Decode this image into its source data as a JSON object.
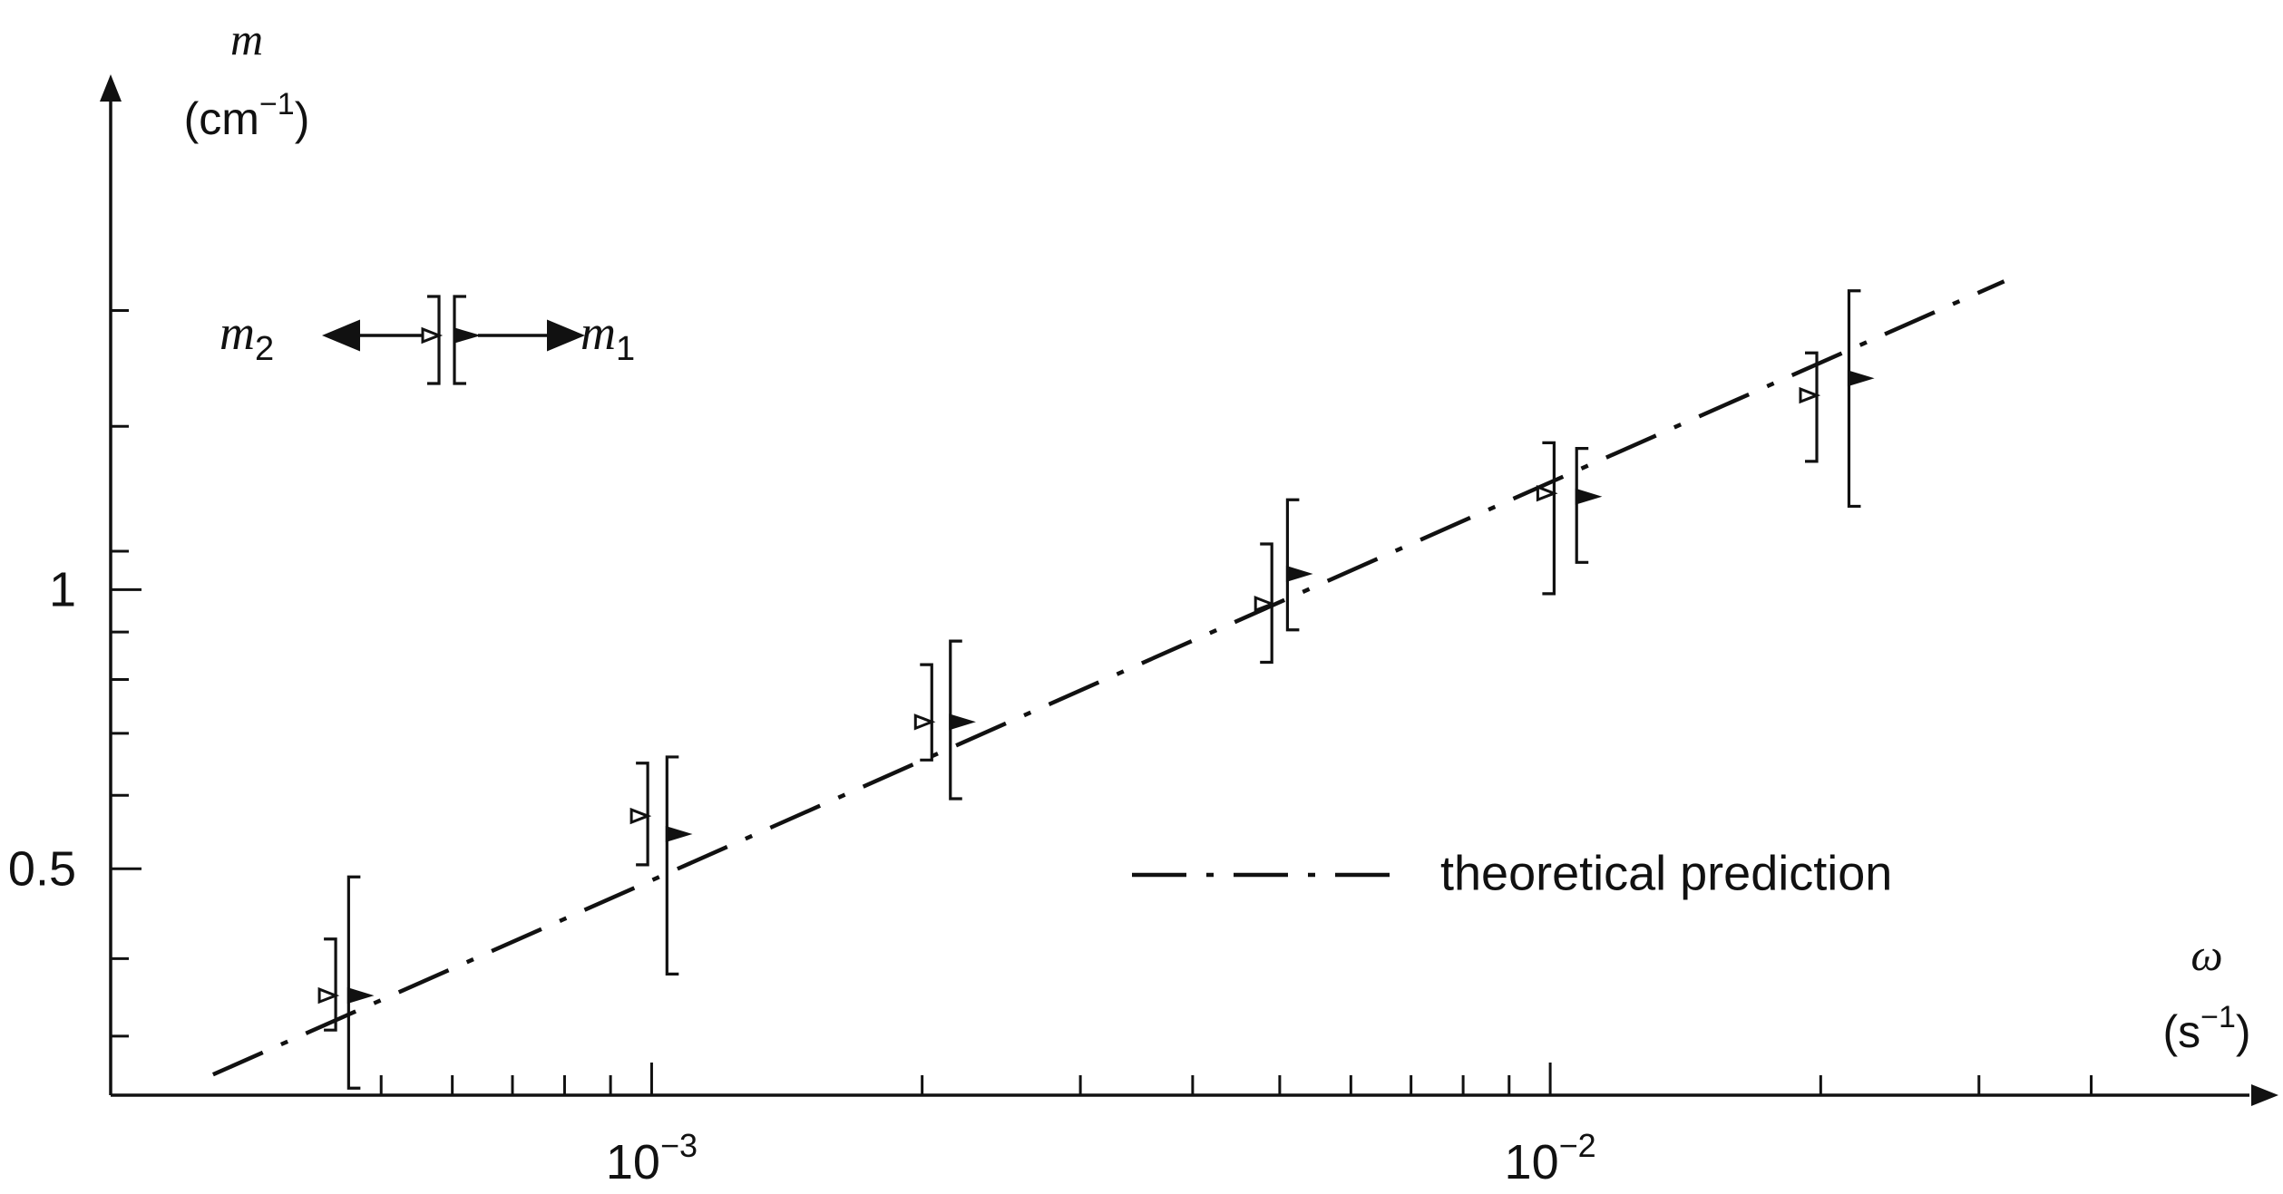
{
  "chart_data": {
    "type": "scatter",
    "x_scale": "log",
    "y_scale": "log",
    "xlim": [
      0.00025,
      0.06
    ],
    "ylim": [
      0.285,
      3.3
    ],
    "axes": {
      "y": {
        "symbol": "m",
        "unit_open": "(cm",
        "unit_exp": "−1",
        "unit_close": ")"
      },
      "x": {
        "symbol": "ω",
        "unit_open": "(s",
        "unit_exp": "−1",
        "unit_close": ")"
      }
    },
    "y_tick_labels": [
      {
        "value": 1,
        "text": "1"
      },
      {
        "value": 0.5,
        "text": "0.5"
      }
    ],
    "x_tick_labels": [
      {
        "value": 0.001,
        "base": "10",
        "exp": "−3"
      },
      {
        "value": 0.01,
        "base": "10",
        "exp": "−2"
      }
    ],
    "x_minor_ticks": [
      0.0005,
      0.0006,
      0.0007,
      0.0008,
      0.0009,
      0.002,
      0.003,
      0.004,
      0.005,
      0.006,
      0.007,
      0.008,
      0.009,
      0.02,
      0.03,
      0.04
    ],
    "y_minor_ticks": [
      0.33,
      0.4,
      0.6,
      0.7,
      0.8,
      0.9,
      1.1,
      1.5,
      2.0
    ],
    "theory_line": {
      "x": [
        0.000325,
        0.032
      ],
      "y": [
        0.3,
        2.15
      ]
    },
    "legend": {
      "label": "theoretical prediction"
    },
    "key": {
      "m1": {
        "symbol": "m",
        "sub": "1"
      },
      "m2": {
        "symbol": "m",
        "sub": "2"
      }
    },
    "series": [
      {
        "key": "m1",
        "marker": "filled-triangle-right",
        "points": [
          {
            "x": 0.00046,
            "y": 0.365,
            "low": 0.29,
            "high": 0.49
          },
          {
            "x": 0.00104,
            "y": 0.545,
            "low": 0.385,
            "high": 0.66
          },
          {
            "x": 0.00215,
            "y": 0.72,
            "low": 0.595,
            "high": 0.88
          },
          {
            "x": 0.0051,
            "y": 1.04,
            "low": 0.905,
            "high": 1.25
          },
          {
            "x": 0.0107,
            "y": 1.26,
            "low": 1.07,
            "high": 1.42
          },
          {
            "x": 0.0215,
            "y": 1.69,
            "low": 1.23,
            "high": 2.1
          }
        ]
      },
      {
        "key": "m2",
        "marker": "open-triangle-left",
        "points": [
          {
            "x": 0.000445,
            "y": 0.365,
            "low": 0.335,
            "high": 0.42
          },
          {
            "x": 0.00099,
            "y": 0.57,
            "low": 0.505,
            "high": 0.65
          },
          {
            "x": 0.00205,
            "y": 0.72,
            "low": 0.655,
            "high": 0.83
          },
          {
            "x": 0.0049,
            "y": 0.965,
            "low": 0.835,
            "high": 1.12
          },
          {
            "x": 0.0101,
            "y": 1.27,
            "low": 0.99,
            "high": 1.44
          },
          {
            "x": 0.0198,
            "y": 1.62,
            "low": 1.375,
            "high": 1.8
          }
        ]
      }
    ]
  }
}
